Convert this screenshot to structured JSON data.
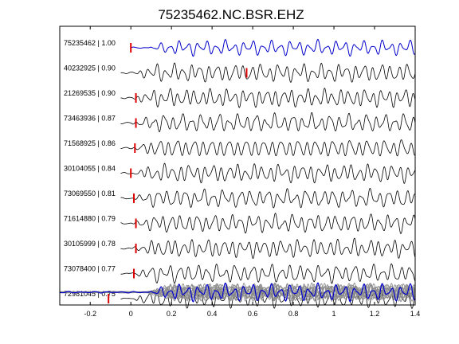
{
  "chart_data": {
    "type": "line",
    "title": "75235462.NC.BSR.EHZ",
    "xlabel": "",
    "ylabel": "",
    "xlim": [
      -0.35,
      1.4
    ],
    "x_ticks": [
      "-0.2",
      "0",
      "0.2",
      "0.4",
      "0.6",
      "0.8",
      "1",
      "1.2",
      "1.4"
    ],
    "x_tick_values": [
      -0.2,
      0,
      0.2,
      0.4,
      0.6,
      0.8,
      1.0,
      1.2,
      1.4
    ],
    "grid": false,
    "legend": "none",
    "trace_color": "#000000",
    "reference_color": "#0000cc",
    "stack_color": "#8c8c8c",
    "pick_color": "#dd0000",
    "series": [
      {
        "label": "75235462 | 1.00",
        "pick_time": 0.0,
        "reference": true
      },
      {
        "label": "40232925 | 0.90",
        "pick_time": 0.57
      },
      {
        "label": "21269535 | 0.90",
        "pick_time": 0.025
      },
      {
        "label": "73463936 | 0.87",
        "pick_time": 0.025
      },
      {
        "label": "71568925 | 0.86",
        "pick_time": 0.02
      },
      {
        "label": "30104055 | 0.84",
        "pick_time": 0.0
      },
      {
        "label": "73069550 | 0.81",
        "pick_time": 0.015
      },
      {
        "label": "71614880 | 0.79",
        "pick_time": 0.025
      },
      {
        "label": "30105999 | 0.78",
        "pick_time": 0.025
      },
      {
        "label": "73078400 | 0.77",
        "pick_time": 0.015
      },
      {
        "label": "72981045 | 0.75",
        "pick_time": -0.11
      }
    ],
    "stacked_overlay": true
  }
}
